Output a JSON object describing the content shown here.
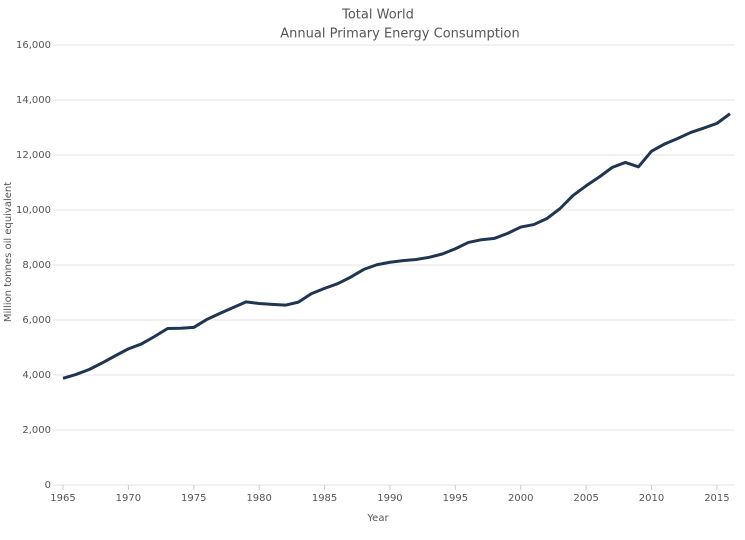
{
  "chart_data": {
    "type": "line",
    "title": "Total World",
    "subtitle": "Annual Primary Energy Consumption",
    "x_label": "Year",
    "y_label": "Million tonnes oil equivalent",
    "x": [
      1965,
      1966,
      1967,
      1968,
      1969,
      1970,
      1971,
      1972,
      1973,
      1974,
      1975,
      1976,
      1977,
      1978,
      1979,
      1980,
      1981,
      1982,
      1983,
      1984,
      1985,
      1986,
      1987,
      1988,
      1989,
      1990,
      1991,
      1992,
      1993,
      1994,
      1995,
      1996,
      1997,
      1998,
      1999,
      2000,
      2001,
      2002,
      2003,
      2004,
      2005,
      2006,
      2007,
      2008,
      2009,
      2010,
      2011,
      2012,
      2013,
      2014,
      2015,
      2016
    ],
    "series": [
      {
        "name": "Total World",
        "color": "#1f3552",
        "values": [
          3880,
          4020,
          4200,
          4440,
          4700,
          4950,
          5130,
          5400,
          5690,
          5700,
          5730,
          6020,
          6240,
          6450,
          6660,
          6600,
          6570,
          6540,
          6650,
          6960,
          7150,
          7320,
          7560,
          7840,
          8010,
          8100,
          8160,
          8200,
          8280,
          8400,
          8590,
          8820,
          8920,
          8970,
          9150,
          9380,
          9470,
          9690,
          10050,
          10530,
          10880,
          11200,
          11550,
          11730,
          11570,
          12140,
          12400,
          12600,
          12820,
          12980,
          13150,
          13500
        ]
      }
    ],
    "xlim": [
      1965,
      2016
    ],
    "xticks": [
      1965,
      1970,
      1975,
      1980,
      1985,
      1990,
      1995,
      2000,
      2005,
      2010,
      2015
    ],
    "ylim": [
      0,
      16000
    ],
    "yticks": [
      0,
      {
        "value": 2000,
        "label": "2,000"
      },
      {
        "value": 4000,
        "label": "4,000"
      },
      {
        "value": 6000,
        "label": "6,000"
      },
      {
        "value": 8000,
        "label": "8,000"
      },
      {
        "value": 10000,
        "label": "10,000"
      },
      {
        "value": 12000,
        "label": "12,000"
      },
      {
        "value": 14000,
        "label": "14,000"
      },
      {
        "value": 16000,
        "label": "16,000"
      }
    ],
    "grid": true
  }
}
